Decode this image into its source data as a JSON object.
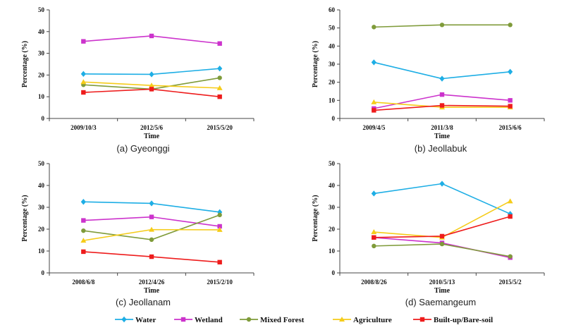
{
  "series_styles": [
    {
      "name": "Water",
      "color": "#1eaee5",
      "marker": "diamond"
    },
    {
      "name": "Wetland",
      "color": "#cc33cc",
      "marker": "square"
    },
    {
      "name": "Mixed Forest",
      "color": "#7f9b3a",
      "marker": "circle"
    },
    {
      "name": "Agriculture",
      "color": "#f5cc1a",
      "marker": "triangle"
    },
    {
      "name": "Built-up/Bare-soil",
      "color": "#ee1c1c",
      "marker": "square"
    }
  ],
  "chart_data": [
    {
      "type": "line",
      "caption": "(a) Gyeonggi",
      "xlabel": "Time",
      "ylabel": "Percentage (%)",
      "ylim": [
        0,
        50
      ],
      "yticks": [
        0,
        10,
        20,
        30,
        40,
        50
      ],
      "categories": [
        "2009/10/3",
        "2012/5/6",
        "2015/5/20"
      ],
      "series": [
        {
          "name": "Water",
          "values": [
            20.5,
            20.3,
            23.0
          ]
        },
        {
          "name": "Wetland",
          "values": [
            35.5,
            38.0,
            34.5
          ]
        },
        {
          "name": "Mixed Forest",
          "values": [
            15.5,
            13.5,
            18.7
          ]
        },
        {
          "name": "Agriculture",
          "values": [
            16.8,
            15.2,
            14.0
          ]
        },
        {
          "name": "Built-up/Bare-soil",
          "values": [
            12.0,
            13.5,
            10.0
          ]
        }
      ]
    },
    {
      "type": "line",
      "caption": "(b) Jeollabuk",
      "xlabel": "Time",
      "ylabel": "Percentage (%)",
      "ylim": [
        0,
        60
      ],
      "yticks": [
        0,
        10,
        20,
        30,
        40,
        50,
        60
      ],
      "categories": [
        "2009/4/5",
        "2011/3/8",
        "2015/6/6"
      ],
      "series": [
        {
          "name": "Water",
          "values": [
            31.0,
            22.0,
            25.8
          ]
        },
        {
          "name": "Wetland",
          "values": [
            5.5,
            13.2,
            10.0
          ]
        },
        {
          "name": "Mixed Forest",
          "values": [
            50.5,
            51.7,
            51.7
          ]
        },
        {
          "name": "Agriculture",
          "values": [
            9.0,
            6.2,
            6.2
          ]
        },
        {
          "name": "Built-up/Bare-soil",
          "values": [
            4.5,
            7.2,
            6.8
          ]
        }
      ]
    },
    {
      "type": "line",
      "caption": "(c) Jeollanam",
      "xlabel": "Time",
      "ylabel": "Percentage (%)",
      "ylim": [
        0,
        50
      ],
      "yticks": [
        0,
        10,
        20,
        30,
        40,
        50
      ],
      "categories": [
        "2008/6/8",
        "2012/4/26",
        "2015/2/10"
      ],
      "series": [
        {
          "name": "Water",
          "values": [
            32.5,
            31.8,
            27.8
          ]
        },
        {
          "name": "Wetland",
          "values": [
            24.0,
            25.6,
            21.3
          ]
        },
        {
          "name": "Mixed Forest",
          "values": [
            19.3,
            15.2,
            26.5
          ]
        },
        {
          "name": "Agriculture",
          "values": [
            14.8,
            19.8,
            19.7
          ]
        },
        {
          "name": "Built-up/Bare-soil",
          "values": [
            9.7,
            7.4,
            4.9
          ]
        }
      ]
    },
    {
      "type": "line",
      "caption": "(d) Saemangeum",
      "xlabel": "Time",
      "ylabel": "Percentage (%)",
      "ylim": [
        0,
        50
      ],
      "yticks": [
        0,
        10,
        20,
        30,
        40,
        50
      ],
      "categories": [
        "2008/8/26",
        "2010/5/13",
        "2015/5/2"
      ],
      "series": [
        {
          "name": "Water",
          "values": [
            36.3,
            40.8,
            27.0
          ]
        },
        {
          "name": "Wetland",
          "values": [
            16.2,
            13.7,
            7.0
          ]
        },
        {
          "name": "Mixed Forest",
          "values": [
            12.3,
            13.2,
            7.5
          ]
        },
        {
          "name": "Agriculture",
          "values": [
            18.7,
            16.2,
            32.8
          ]
        },
        {
          "name": "Built-up/Bare-soil",
          "values": [
            16.2,
            16.8,
            25.8
          ]
        }
      ]
    }
  ],
  "legend": {
    "entries": [
      "Water",
      "Wetland",
      "Mixed Forest",
      "Agriculture",
      "Built-up/Bare-soil"
    ],
    "placement": "bottom"
  }
}
